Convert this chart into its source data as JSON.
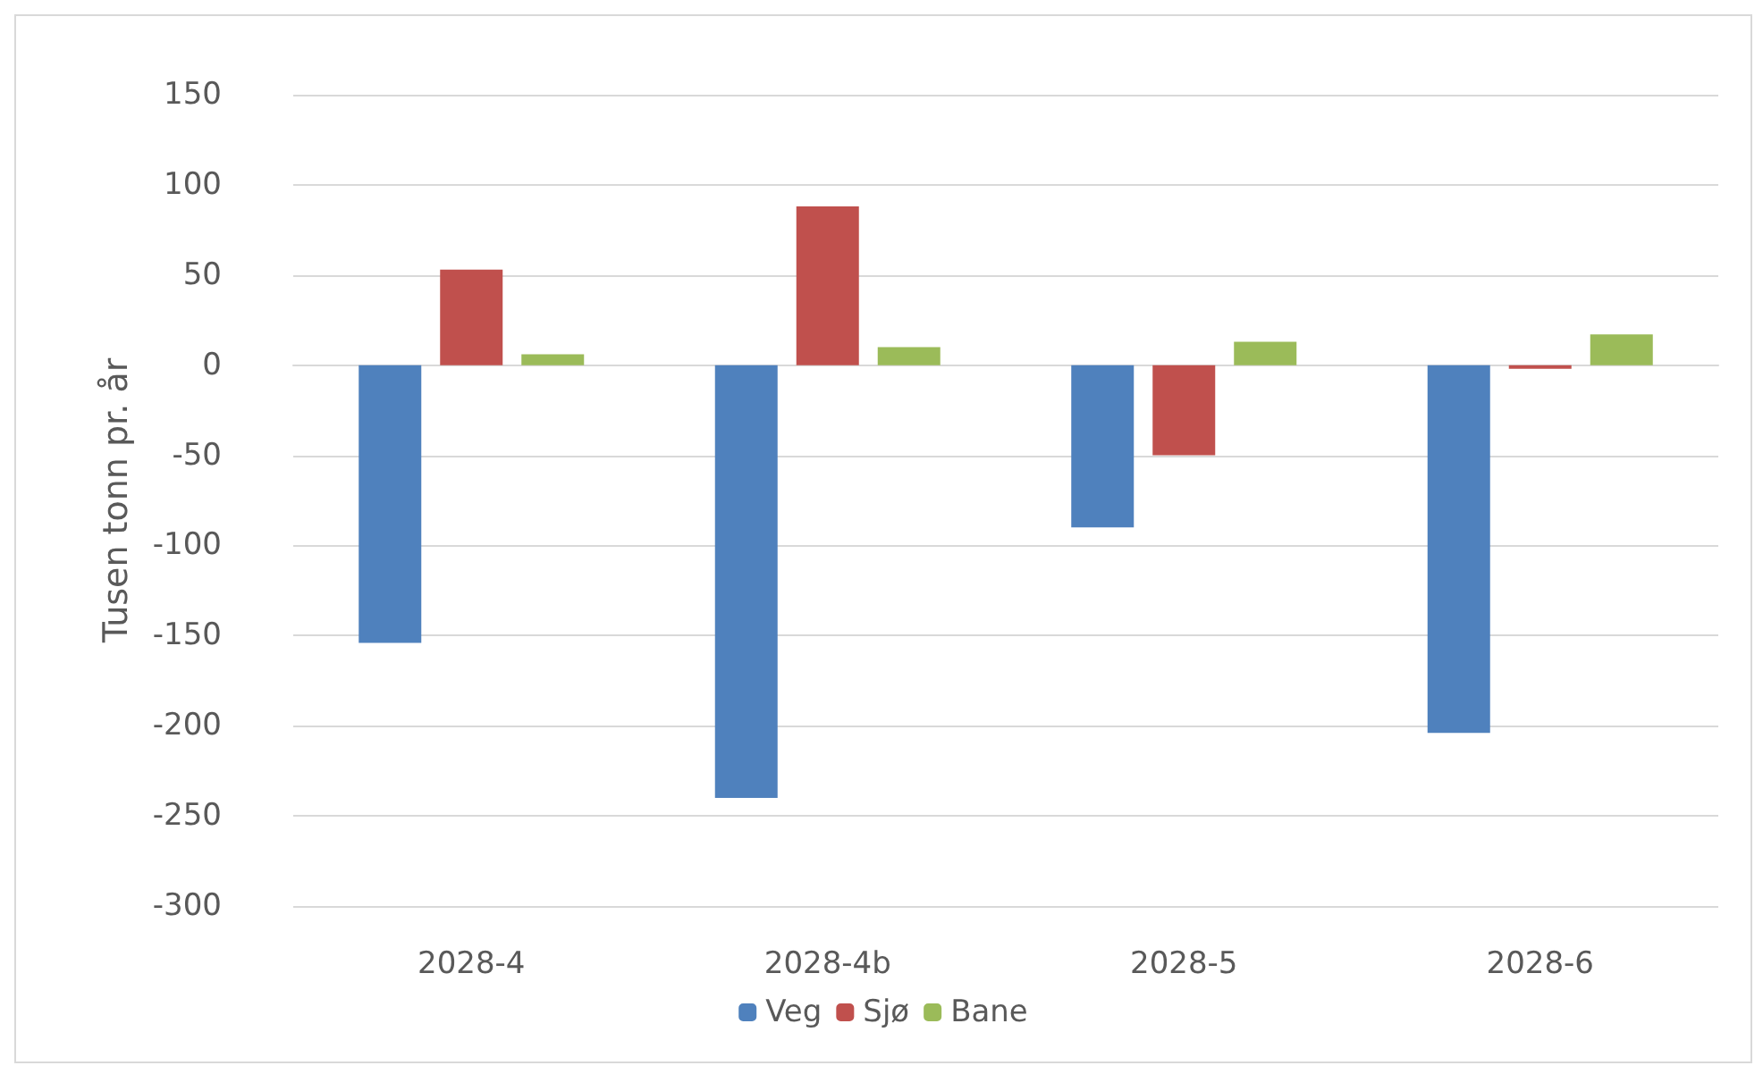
{
  "chart_data": {
    "type": "bar",
    "ylabel": "Tusen tonn pr. år",
    "categories": [
      "2028-4",
      "2028-4b",
      "2028-5",
      "2028-6"
    ],
    "series": [
      {
        "name": "Veg",
        "color": "#4f81bd",
        "values": [
          -154,
          -240,
          -90,
          -204
        ]
      },
      {
        "name": "Sjø",
        "color": "#c0504d",
        "values": [
          53,
          88,
          -50,
          -2
        ]
      },
      {
        "name": "Bane",
        "color": "#9bbb59",
        "values": [
          6,
          10,
          13,
          17
        ]
      }
    ],
    "ylim": [
      -300,
      150
    ],
    "yticks": [
      -300,
      -250,
      -200,
      -150,
      -100,
      -50,
      0,
      50,
      100,
      150
    ],
    "grid": "y",
    "legend": "bottom"
  }
}
